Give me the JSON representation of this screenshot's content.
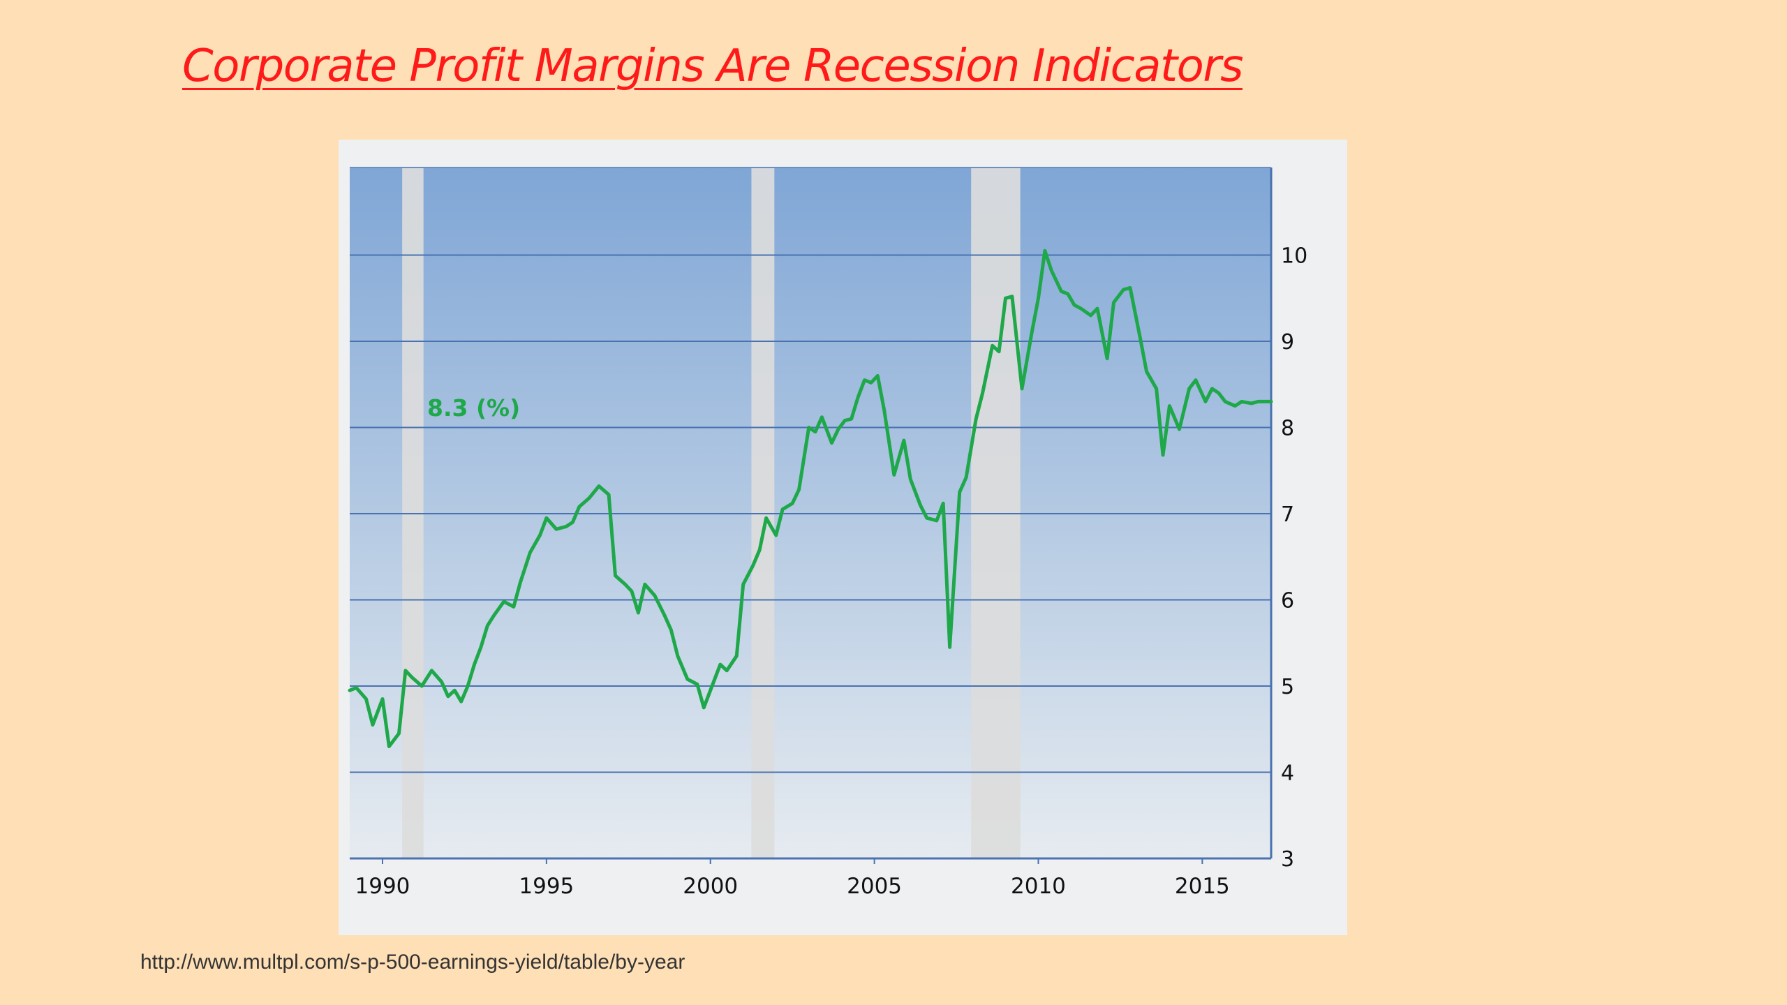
{
  "slide": {
    "title": "Corporate Profit Margins Are Recession Indicators",
    "source_url": "http://www.multpl.com/s-p-500-earnings-yield/table/by-year",
    "background_color": "#ffdfb5",
    "title_color": "#ff1a1a"
  },
  "chart_data": {
    "type": "line",
    "title": "",
    "xlabel": "",
    "ylabel": "",
    "current_value_label": "8.3 (%)",
    "x_ticks": [
      "1990",
      "1995",
      "2000",
      "2005",
      "2010",
      "2015"
    ],
    "y_ticks": [
      "3",
      "4",
      "5",
      "6",
      "7",
      "8",
      "9",
      "10"
    ],
    "xlim": [
      1989.0,
      2017.1
    ],
    "ylim": [
      3,
      11
    ],
    "y_axis_side": "right",
    "grid": true,
    "legend": "none",
    "recession_bands": [
      [
        1990.6,
        1991.25
      ],
      [
        2001.25,
        2001.95
      ],
      [
        2007.95,
        2009.45
      ]
    ],
    "series": [
      {
        "color": "#1ea84a",
        "x": [
          1989.0,
          1989.2,
          1989.5,
          1989.7,
          1990.0,
          1990.2,
          1990.5,
          1990.7,
          1990.9,
          1991.2,
          1991.5,
          1991.8,
          1992.0,
          1992.2,
          1992.4,
          1992.6,
          1992.8,
          1993.0,
          1993.2,
          1993.4,
          1993.7,
          1994.0,
          1994.2,
          1994.5,
          1994.8,
          1995.0,
          1995.3,
          1995.6,
          1995.8,
          1996.0,
          1996.3,
          1996.6,
          1996.9,
          1997.1,
          1997.4,
          1997.6,
          1997.8,
          1998.0,
          1998.3,
          1998.6,
          1998.8,
          1999.0,
          1999.3,
          1999.6,
          1999.8,
          2000.0,
          2000.3,
          2000.5,
          2000.8,
          2001.0,
          2001.3,
          2001.5,
          2001.7,
          2002.0,
          2002.2,
          2002.5,
          2002.7,
          2003.0,
          2003.2,
          2003.4,
          2003.7,
          2003.9,
          2004.1,
          2004.3,
          2004.5,
          2004.7,
          2004.9,
          2005.1,
          2005.3,
          2005.6,
          2005.9,
          2006.1,
          2006.4,
          2006.6,
          2006.9,
          2007.1,
          2007.3,
          2007.6,
          2007.8,
          2008.1,
          2008.3,
          2008.6,
          2008.8,
          2009.0,
          2009.2,
          2009.5,
          2009.8,
          2010.0,
          2010.2,
          2010.4,
          2010.7,
          2010.9,
          2011.1,
          2011.3,
          2011.6,
          2011.8,
          2012.1,
          2012.3,
          2012.6,
          2012.8,
          2013.1,
          2013.3,
          2013.6,
          2013.8,
          2014.0,
          2014.3,
          2014.6,
          2014.8,
          2015.1,
          2015.3,
          2015.5,
          2015.7,
          2016.0,
          2016.2,
          2016.5,
          2016.7,
          2016.9,
          2017.1
        ],
        "y": [
          4.95,
          4.98,
          4.85,
          4.55,
          4.85,
          4.3,
          4.45,
          5.18,
          5.1,
          5.0,
          5.18,
          5.05,
          4.88,
          4.95,
          4.82,
          5.0,
          5.25,
          5.45,
          5.7,
          5.82,
          5.98,
          5.92,
          6.2,
          6.55,
          6.75,
          6.95,
          6.82,
          6.85,
          6.9,
          7.08,
          7.18,
          7.32,
          7.22,
          6.28,
          6.18,
          6.1,
          5.85,
          6.18,
          6.05,
          5.82,
          5.65,
          5.35,
          5.08,
          5.02,
          4.75,
          4.95,
          5.25,
          5.18,
          5.35,
          6.18,
          6.4,
          6.58,
          6.95,
          6.75,
          7.05,
          7.12,
          7.28,
          8.0,
          7.95,
          8.12,
          7.82,
          7.98,
          8.08,
          8.1,
          8.35,
          8.55,
          8.52,
          8.6,
          8.2,
          7.45,
          7.85,
          7.4,
          7.1,
          6.95,
          6.92,
          7.12,
          5.45,
          7.25,
          7.42,
          8.1,
          8.4,
          8.95,
          8.88,
          9.5,
          9.52,
          8.45,
          9.1,
          9.5,
          10.05,
          9.82,
          9.58,
          9.55,
          9.42,
          9.38,
          9.3,
          9.38,
          8.8,
          9.45,
          9.6,
          9.62,
          9.05,
          8.65,
          8.45,
          7.68,
          8.25,
          7.98,
          8.45,
          8.55,
          8.3,
          8.45,
          8.4,
          8.3,
          8.25,
          8.3,
          8.28,
          8.3,
          8.3,
          8.3
        ]
      }
    ]
  }
}
